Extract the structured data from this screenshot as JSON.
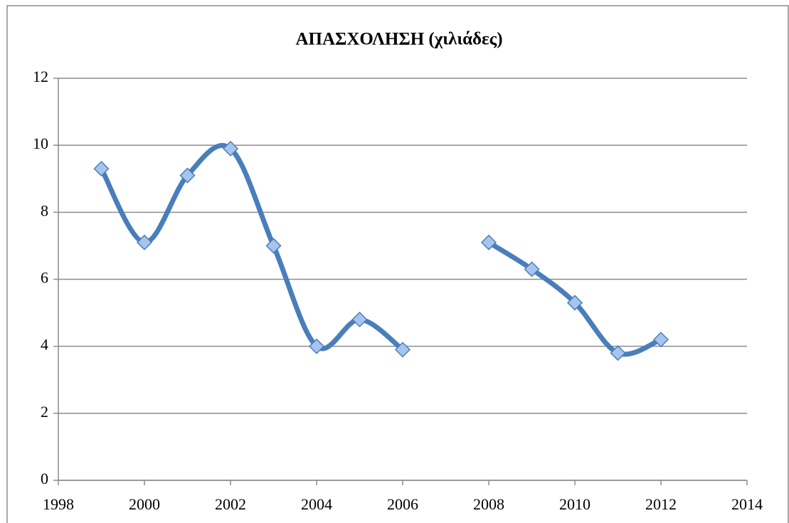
{
  "chart_data": {
    "type": "line",
    "title": "ΑΠΑΣΧΟΛΗΣΗ (χιλιάδες)",
    "x": [
      1999,
      2000,
      2001,
      2002,
      2003,
      2004,
      2005,
      2006,
      2007,
      2008,
      2009,
      2010,
      2011,
      2012
    ],
    "series": [
      {
        "name": "ΑΠΑΣΧΟΛΗΣΗ",
        "color": "#4a7ebb",
        "values": [
          9.3,
          7.1,
          9.1,
          9.9,
          7.0,
          4.0,
          4.8,
          3.9,
          null,
          7.1,
          6.3,
          5.3,
          3.8,
          4.2
        ]
      }
    ],
    "xlim": [
      1998,
      2014
    ],
    "xticks": [
      1998,
      2000,
      2002,
      2004,
      2006,
      2008,
      2010,
      2012,
      2014
    ],
    "ylim": [
      0,
      12
    ],
    "yticks": [
      0,
      2,
      4,
      6,
      8,
      10,
      12
    ],
    "grid": true,
    "smooth": true
  }
}
